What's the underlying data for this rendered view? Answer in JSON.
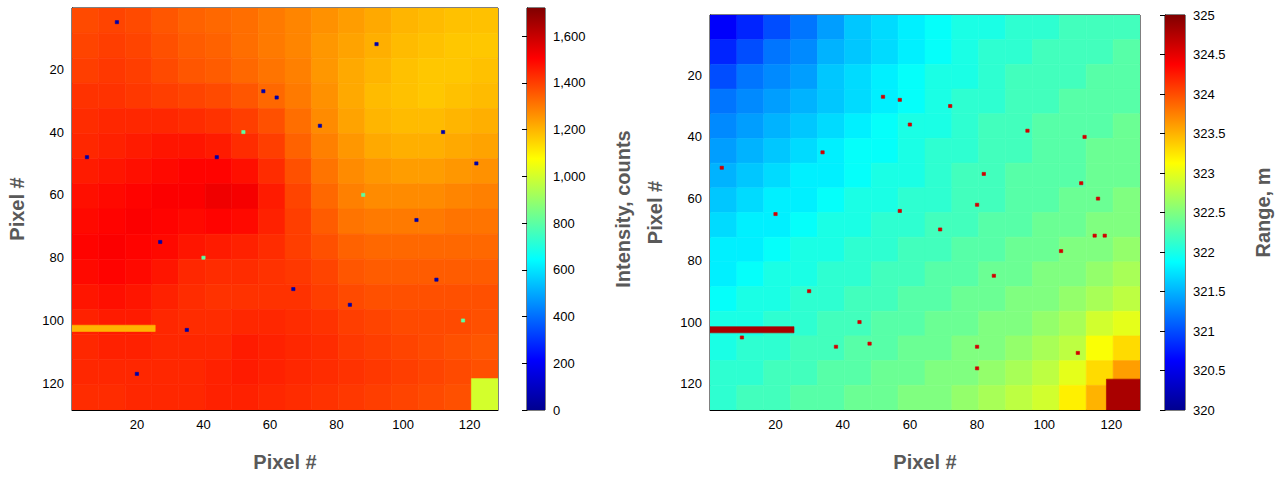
{
  "chart_data": [
    {
      "type": "heatmap",
      "x_label": "Pixel #",
      "y_label": "Pixel #",
      "color": "jet",
      "xlim": [
        0.5,
        128.5
      ],
      "ylim": [
        0.5,
        128.5
      ],
      "xticks": [
        20,
        40,
        60,
        80,
        100,
        120
      ],
      "yticks": [
        20,
        40,
        60,
        80,
        100,
        120
      ],
      "cells": {
        "x_edges": [
          0.5,
          8.5,
          16.5,
          24.5,
          32.5,
          40.5,
          48.5,
          56.5,
          64.5,
          72.5,
          80.5,
          88.5,
          96.5,
          104.5,
          112.5,
          120.5,
          128.5
        ],
        "y_edges": [
          0.5,
          8.5,
          16.5,
          24.5,
          32.5,
          40.5,
          48.5,
          56.5,
          64.5,
          72.5,
          80.5,
          88.5,
          96.5,
          104.5,
          112.5,
          120.5,
          128.5
        ],
        "values": [
          [
            1380,
            1390,
            1380,
            1360,
            1340,
            1330,
            1320,
            1300,
            1280,
            1260,
            1240,
            1220,
            1200,
            1190,
            1180,
            1180
          ],
          [
            1390,
            1400,
            1390,
            1370,
            1350,
            1340,
            1320,
            1300,
            1280,
            1250,
            1230,
            1210,
            1190,
            1180,
            1170,
            1170
          ],
          [
            1400,
            1410,
            1400,
            1380,
            1360,
            1350,
            1330,
            1310,
            1290,
            1250,
            1220,
            1200,
            1180,
            1170,
            1170,
            1180
          ],
          [
            1420,
            1420,
            1410,
            1400,
            1390,
            1380,
            1360,
            1330,
            1300,
            1260,
            1220,
            1190,
            1180,
            1170,
            1180,
            1190
          ],
          [
            1430,
            1440,
            1440,
            1440,
            1430,
            1420,
            1400,
            1370,
            1320,
            1270,
            1230,
            1200,
            1190,
            1190,
            1200,
            1210
          ],
          [
            1440,
            1450,
            1460,
            1470,
            1470,
            1460,
            1430,
            1400,
            1340,
            1290,
            1250,
            1220,
            1210,
            1210,
            1220,
            1230
          ],
          [
            1460,
            1470,
            1480,
            1490,
            1500,
            1500,
            1480,
            1430,
            1370,
            1310,
            1270,
            1250,
            1240,
            1240,
            1250,
            1260
          ],
          [
            1480,
            1490,
            1500,
            1510,
            1510,
            1530,
            1520,
            1460,
            1390,
            1330,
            1290,
            1270,
            1270,
            1270,
            1280,
            1290
          ],
          [
            1490,
            1500,
            1510,
            1500,
            1490,
            1500,
            1490,
            1450,
            1400,
            1350,
            1310,
            1300,
            1300,
            1300,
            1310,
            1310
          ],
          [
            1500,
            1510,
            1500,
            1490,
            1470,
            1460,
            1450,
            1430,
            1400,
            1370,
            1340,
            1330,
            1330,
            1330,
            1330,
            1330
          ],
          [
            1490,
            1500,
            1490,
            1470,
            1440,
            1430,
            1430,
            1420,
            1410,
            1390,
            1360,
            1350,
            1350,
            1350,
            1350,
            1350
          ],
          [
            1470,
            1480,
            1470,
            1450,
            1430,
            1420,
            1420,
            1420,
            1420,
            1400,
            1380,
            1370,
            1370,
            1370,
            1370,
            1370
          ],
          [
            1450,
            1460,
            1460,
            1440,
            1430,
            1430,
            1440,
            1440,
            1430,
            1420,
            1400,
            1390,
            1380,
            1380,
            1380,
            1370
          ],
          [
            1440,
            1450,
            1450,
            1440,
            1440,
            1440,
            1460,
            1450,
            1440,
            1430,
            1410,
            1400,
            1390,
            1380,
            1370,
            1360
          ],
          [
            1440,
            1440,
            1440,
            1440,
            1440,
            1450,
            1460,
            1450,
            1440,
            1430,
            1420,
            1410,
            1400,
            1390,
            1380,
            1370
          ],
          [
            1430,
            1430,
            1440,
            1440,
            1440,
            1450,
            1450,
            1440,
            1430,
            1420,
            1410,
            1400,
            1390,
            1380,
            1370,
            1360
          ]
        ]
      },
      "overlays": [
        {
          "x": [
            0.5,
            25.5
          ],
          "y": [
            101.5,
            103.5
          ],
          "value": 1200
        },
        {
          "x": [
            120.5,
            128.5
          ],
          "y": [
            118.5,
            128.5
          ],
          "value": 1000
        }
      ],
      "spots": [
        {
          "x": 14,
          "y": 5,
          "value": 50
        },
        {
          "x": 58,
          "y": 27,
          "value": 50
        },
        {
          "x": 62,
          "y": 29,
          "value": 50
        },
        {
          "x": 44,
          "y": 48,
          "value": 50
        },
        {
          "x": 75,
          "y": 38,
          "value": 50
        },
        {
          "x": 112,
          "y": 40,
          "value": 50
        },
        {
          "x": 122,
          "y": 50,
          "value": 50
        },
        {
          "x": 104,
          "y": 68,
          "value": 50
        },
        {
          "x": 35,
          "y": 103,
          "value": 50
        },
        {
          "x": 20,
          "y": 117,
          "value": 50
        },
        {
          "x": 84,
          "y": 95,
          "value": 50
        },
        {
          "x": 5,
          "y": 48,
          "value": 50
        },
        {
          "x": 92,
          "y": 12,
          "value": 50
        },
        {
          "x": 67,
          "y": 90,
          "value": 50
        },
        {
          "x": 110,
          "y": 87,
          "value": 50
        },
        {
          "x": 27,
          "y": 75,
          "value": 50
        },
        {
          "x": 52,
          "y": 40,
          "value": 800
        },
        {
          "x": 88,
          "y": 60,
          "value": 800
        },
        {
          "x": 40,
          "y": 80,
          "value": 800
        },
        {
          "x": 118,
          "y": 100,
          "value": 800
        }
      ],
      "colorbar": {
        "label": "Intensity, counts",
        "range": [
          0,
          1720
        ],
        "ticks": [
          0,
          200,
          400,
          600,
          800,
          1000,
          1200,
          1400,
          1600
        ]
      }
    },
    {
      "type": "heatmap",
      "x_label": "Pixel #",
      "y_label": "Pixel #",
      "color": "jet",
      "xlim": [
        0.5,
        128.5
      ],
      "ylim": [
        0.5,
        128.5
      ],
      "xticks": [
        20,
        40,
        60,
        80,
        100,
        120
      ],
      "yticks": [
        20,
        40,
        60,
        80,
        100,
        120
      ],
      "cells": {
        "x_edges": [
          0.5,
          8.5,
          16.5,
          24.5,
          32.5,
          40.5,
          48.5,
          56.5,
          64.5,
          72.5,
          80.5,
          88.5,
          96.5,
          104.5,
          112.5,
          120.5,
          128.5
        ],
        "y_edges": [
          0.5,
          8.5,
          16.5,
          24.5,
          32.5,
          40.5,
          48.5,
          56.5,
          64.5,
          72.5,
          80.5,
          88.5,
          96.5,
          104.5,
          112.5,
          120.5,
          128.5
        ],
        "values": [
          [
            320.6,
            320.8,
            321.0,
            321.2,
            321.4,
            321.6,
            321.7,
            321.8,
            321.9,
            322.0,
            322.0,
            322.1,
            322.1,
            322.2,
            322.2,
            322.2
          ],
          [
            320.8,
            321.0,
            321.2,
            321.3,
            321.5,
            321.6,
            321.7,
            321.8,
            321.9,
            322.0,
            322.1,
            322.1,
            322.2,
            322.2,
            322.2,
            322.3
          ],
          [
            321.0,
            321.2,
            321.3,
            321.4,
            321.6,
            321.7,
            321.8,
            321.9,
            322.0,
            322.0,
            322.1,
            322.2,
            322.2,
            322.2,
            322.3,
            322.3
          ],
          [
            321.2,
            321.3,
            321.4,
            321.5,
            321.6,
            321.7,
            321.8,
            321.9,
            322.0,
            322.1,
            322.1,
            322.2,
            322.2,
            322.3,
            322.3,
            322.3
          ],
          [
            321.3,
            321.4,
            321.5,
            321.6,
            321.7,
            321.8,
            321.9,
            322.0,
            322.0,
            322.1,
            322.2,
            322.2,
            322.3,
            322.3,
            322.3,
            322.4
          ],
          [
            321.4,
            321.5,
            321.6,
            321.7,
            321.8,
            321.9,
            321.9,
            322.0,
            322.1,
            322.1,
            322.2,
            322.2,
            322.3,
            322.3,
            322.4,
            322.4
          ],
          [
            321.5,
            321.6,
            321.7,
            321.8,
            321.8,
            321.9,
            322.0,
            322.0,
            322.1,
            322.2,
            322.2,
            322.3,
            322.3,
            322.3,
            322.4,
            322.4
          ],
          [
            321.6,
            321.7,
            321.8,
            321.8,
            321.9,
            322.0,
            322.0,
            322.1,
            322.1,
            322.2,
            322.2,
            322.3,
            322.3,
            322.4,
            322.4,
            322.5
          ],
          [
            321.7,
            321.8,
            321.8,
            321.9,
            322.0,
            322.0,
            322.1,
            322.1,
            322.2,
            322.2,
            322.3,
            322.3,
            322.4,
            322.4,
            322.5,
            322.5
          ],
          [
            321.8,
            321.8,
            321.9,
            322.0,
            322.0,
            322.1,
            322.1,
            322.2,
            322.2,
            322.3,
            322.3,
            322.4,
            322.4,
            322.5,
            322.5,
            322.6
          ],
          [
            321.8,
            321.9,
            322.0,
            322.0,
            322.1,
            322.1,
            322.2,
            322.2,
            322.3,
            322.3,
            322.4,
            322.4,
            322.5,
            322.5,
            322.6,
            322.7
          ],
          [
            321.9,
            322.0,
            322.0,
            322.1,
            322.1,
            322.2,
            322.2,
            322.3,
            322.3,
            322.4,
            322.4,
            322.5,
            322.5,
            322.6,
            322.7,
            322.8
          ],
          [
            322.0,
            322.0,
            322.1,
            322.1,
            322.2,
            322.2,
            322.3,
            322.3,
            322.4,
            322.4,
            322.5,
            322.5,
            322.6,
            322.7,
            322.9,
            323.0
          ],
          [
            322.0,
            322.1,
            322.1,
            322.2,
            322.2,
            322.3,
            322.3,
            322.4,
            322.4,
            322.5,
            322.5,
            322.6,
            322.7,
            322.8,
            323.1,
            323.3
          ],
          [
            322.1,
            322.1,
            322.2,
            322.2,
            322.3,
            322.3,
            322.4,
            322.4,
            322.5,
            322.5,
            322.6,
            322.7,
            322.8,
            323.0,
            323.3,
            323.6
          ],
          [
            322.1,
            322.2,
            322.2,
            322.3,
            322.3,
            322.4,
            322.4,
            322.5,
            322.5,
            322.6,
            322.7,
            322.8,
            322.9,
            323.2,
            323.5,
            323.8
          ]
        ]
      },
      "overlays": [
        {
          "x": [
            0.5,
            25.5
          ],
          "y": [
            101.5,
            103.5
          ],
          "value": 324.8
        },
        {
          "x": [
            118.5,
            128.5
          ],
          "y": [
            118.5,
            128.5
          ],
          "value": 324.8
        }
      ],
      "spots": [
        {
          "x": 52,
          "y": 27,
          "value": 324.6
        },
        {
          "x": 57,
          "y": 28,
          "value": 324.6
        },
        {
          "x": 72,
          "y": 30,
          "value": 324.6
        },
        {
          "x": 95,
          "y": 38,
          "value": 324.6
        },
        {
          "x": 60,
          "y": 36,
          "value": 324.6
        },
        {
          "x": 112,
          "y": 40,
          "value": 324.6
        },
        {
          "x": 34,
          "y": 45,
          "value": 324.6
        },
        {
          "x": 4,
          "y": 50,
          "value": 324.6
        },
        {
          "x": 82,
          "y": 52,
          "value": 324.6
        },
        {
          "x": 111,
          "y": 55,
          "value": 324.6
        },
        {
          "x": 20,
          "y": 65,
          "value": 324.6
        },
        {
          "x": 57,
          "y": 64,
          "value": 324.6
        },
        {
          "x": 80,
          "y": 62,
          "value": 324.6
        },
        {
          "x": 116,
          "y": 60,
          "value": 324.6
        },
        {
          "x": 69,
          "y": 70,
          "value": 324.6
        },
        {
          "x": 105,
          "y": 77,
          "value": 324.6
        },
        {
          "x": 85,
          "y": 85,
          "value": 324.6
        },
        {
          "x": 115,
          "y": 72,
          "value": 324.6
        },
        {
          "x": 45,
          "y": 100,
          "value": 324.6
        },
        {
          "x": 48,
          "y": 107,
          "value": 324.6
        },
        {
          "x": 38,
          "y": 108,
          "value": 324.6
        },
        {
          "x": 80,
          "y": 108,
          "value": 324.6
        },
        {
          "x": 80,
          "y": 115,
          "value": 324.6
        },
        {
          "x": 118,
          "y": 72,
          "value": 324.6
        },
        {
          "x": 110,
          "y": 110,
          "value": 324.6
        },
        {
          "x": 10,
          "y": 105,
          "value": 324.6
        },
        {
          "x": 30,
          "y": 90,
          "value": 324.6
        }
      ],
      "colorbar": {
        "label": "Range, m",
        "range": [
          320,
          325
        ],
        "ticks": [
          320,
          320.5,
          321,
          321.5,
          322,
          322.5,
          323,
          323.5,
          324,
          324.5,
          325
        ]
      }
    }
  ]
}
